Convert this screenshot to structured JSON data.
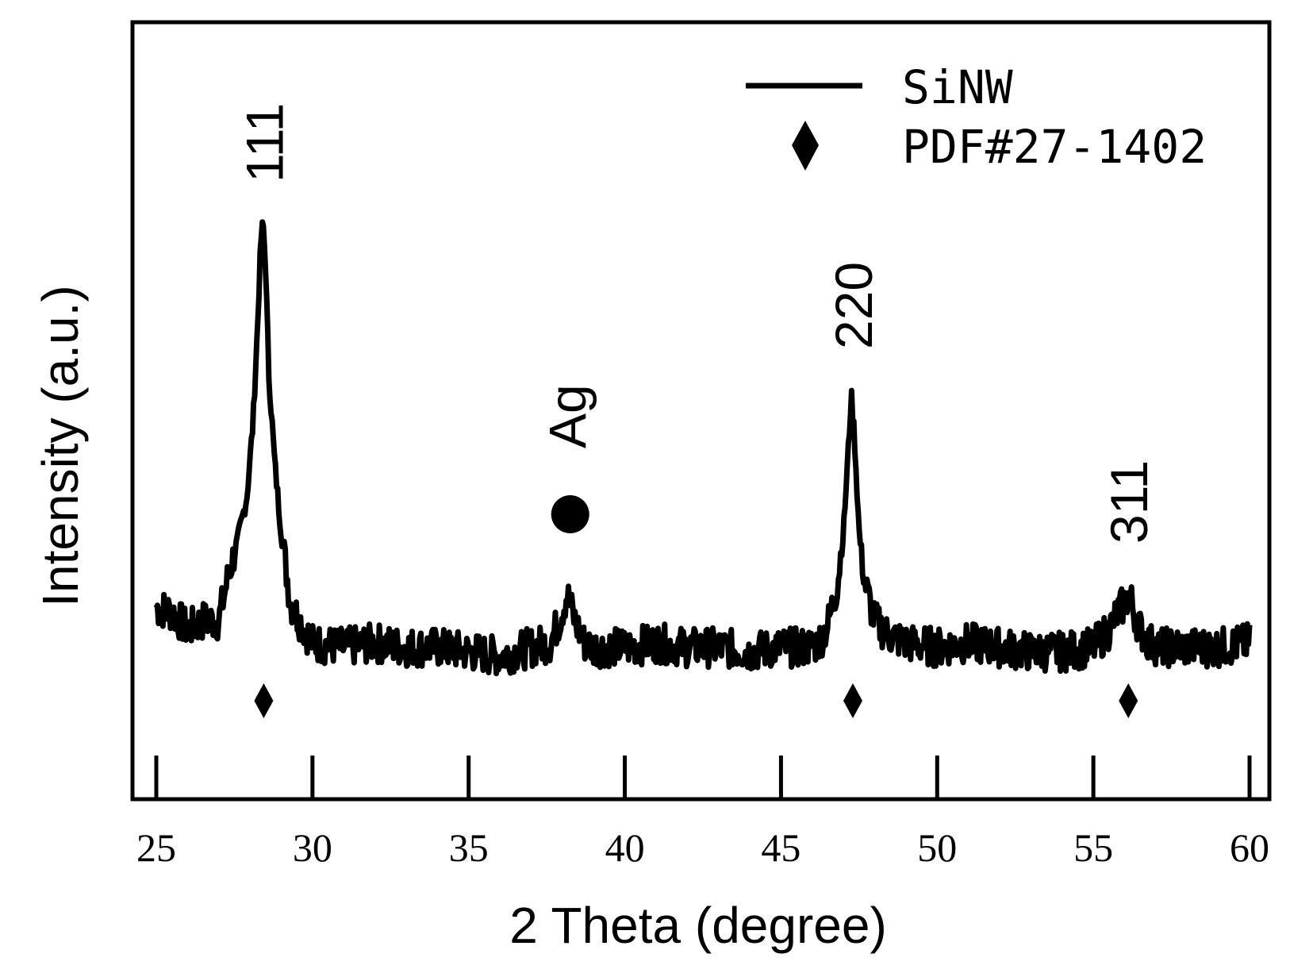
{
  "chart_data": {
    "type": "line",
    "xlabel": "2 Theta (degree)",
    "ylabel": "Intensity (a.u.)",
    "xlim": [
      25,
      60
    ],
    "xticks": [
      25,
      30,
      35,
      40,
      45,
      50,
      55,
      60
    ],
    "xtick_labels": [
      "25",
      "30",
      "35",
      "40",
      "45",
      "50",
      "55",
      "60"
    ],
    "y_ticks_shown": false,
    "legend": {
      "placement": "top-right",
      "line_label": "SiNW",
      "marker_label": "PDF#27-1402"
    },
    "series": [
      {
        "name": "SiNW",
        "x": [
          25.0,
          25.5,
          26.0,
          26.5,
          27.0,
          27.3,
          27.6,
          27.9,
          28.1,
          28.25,
          28.35,
          28.42,
          28.5,
          28.6,
          28.8,
          29.0,
          29.3,
          29.6,
          30.0,
          31.0,
          32.0,
          33.0,
          34.0,
          35.0,
          36.0,
          37.0,
          37.6,
          37.9,
          38.15,
          38.4,
          38.7,
          39.0,
          40.0,
          41.0,
          42.0,
          43.0,
          44.0,
          45.0,
          45.8,
          46.2,
          46.5,
          46.8,
          47.0,
          47.15,
          47.25,
          47.35,
          47.5,
          47.7,
          48.0,
          48.4,
          49.0,
          50.0,
          51.0,
          52.0,
          53.0,
          54.0,
          55.0,
          55.5,
          55.8,
          56.0,
          56.15,
          56.3,
          56.5,
          56.8,
          57.2,
          58.0,
          59.0,
          60.0
        ],
        "y": [
          0.13,
          0.12,
          0.08,
          0.1,
          0.1,
          0.2,
          0.28,
          0.38,
          0.55,
          0.78,
          0.96,
          1.0,
          0.9,
          0.66,
          0.45,
          0.3,
          0.14,
          0.1,
          0.05,
          0.04,
          0.05,
          0.04,
          0.04,
          0.03,
          0.02,
          0.04,
          0.05,
          0.1,
          0.16,
          0.1,
          0.05,
          0.04,
          0.04,
          0.05,
          0.04,
          0.04,
          0.03,
          0.04,
          0.04,
          0.05,
          0.09,
          0.18,
          0.3,
          0.48,
          0.61,
          0.52,
          0.3,
          0.18,
          0.1,
          0.07,
          0.05,
          0.04,
          0.05,
          0.04,
          0.03,
          0.03,
          0.04,
          0.08,
          0.12,
          0.14,
          0.16,
          0.12,
          0.08,
          0.05,
          0.04,
          0.04,
          0.04,
          0.05
        ]
      }
    ],
    "reference_markers": {
      "name": "PDF#27-1402",
      "symbol": "diamond",
      "x": [
        28.44,
        47.3,
        56.12
      ]
    },
    "annotations": [
      {
        "text": "111",
        "x": 28.44,
        "rotation": -90
      },
      {
        "text": "Ag",
        "x": 38.15,
        "rotation": -90,
        "marker": "circle"
      },
      {
        "text": "220",
        "x": 47.3,
        "rotation": -90
      },
      {
        "text": "311",
        "x": 56.12,
        "rotation": -90
      }
    ],
    "colors": {
      "line": "#000000",
      "background": "#ffffff"
    }
  }
}
